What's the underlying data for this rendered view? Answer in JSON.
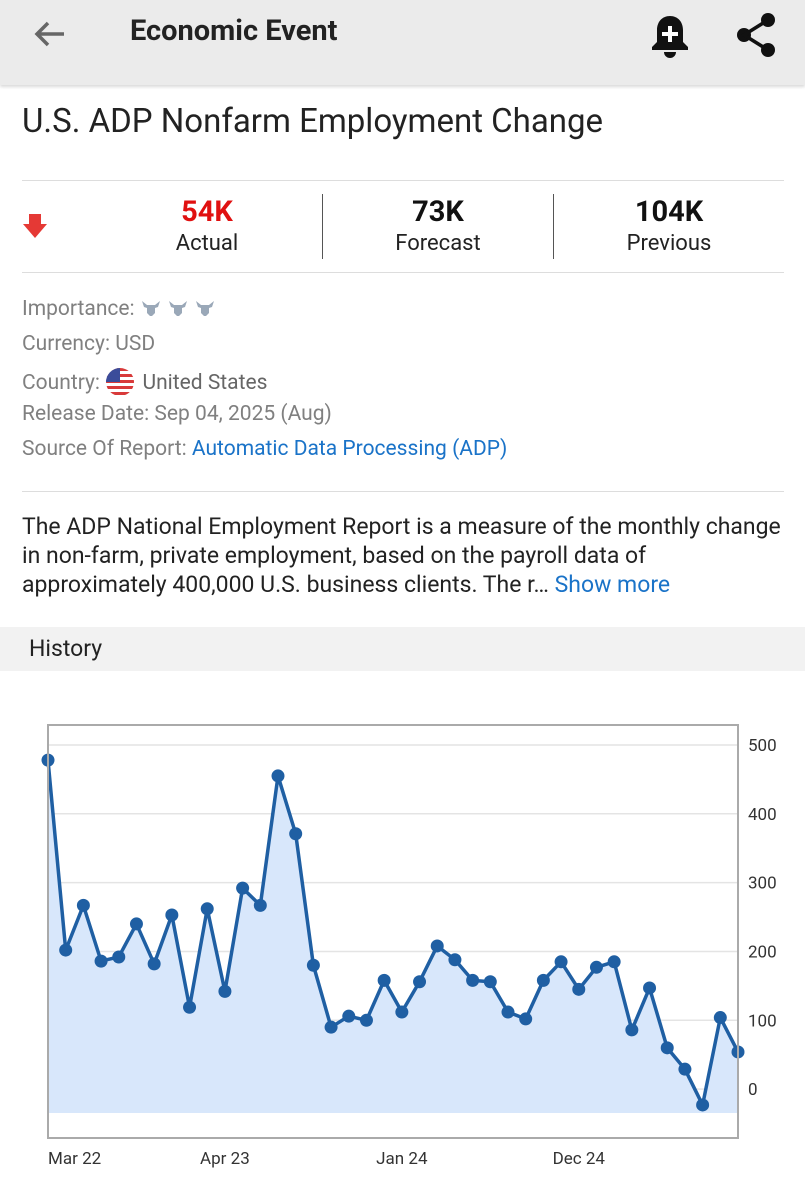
{
  "header": {
    "title": "Economic Event"
  },
  "event": {
    "title": "U.S. ADP Nonfarm Employment Change",
    "stats": [
      {
        "value": "54K",
        "label": "Actual"
      },
      {
        "value": "73K",
        "label": "Forecast"
      },
      {
        "value": "104K",
        "label": "Previous"
      }
    ],
    "importance_label": "Importance:",
    "currency": "Currency: USD",
    "country_label": "Country:",
    "country": "United States",
    "release_date": "Release Date: Sep 04, 2025 (Aug)",
    "source_label": "Source Of Report:",
    "source": "Automatic Data Processing (ADP)",
    "description": "The ADP National Employment Report is a measure of the monthly change in non-farm, private employment, based on the payroll data of approximately 400,000 U.S. business clients. The r…",
    "show_more": "Show more",
    "history_label": "History"
  },
  "chart_data": {
    "type": "line",
    "color": "#1f5fa3",
    "area_color": "#d8e7fb",
    "categories": [
      "Mar 22",
      null,
      null,
      null,
      null,
      null,
      null,
      null,
      null,
      null,
      "Apr 23",
      null,
      null,
      null,
      null,
      null,
      null,
      null,
      null,
      null,
      "Jan 24",
      null,
      null,
      null,
      null,
      null,
      null,
      null,
      null,
      null,
      "Dec 24",
      null,
      null,
      null,
      null,
      null,
      null,
      null,
      null,
      null
    ],
    "values": [
      478,
      202,
      267,
      186,
      192,
      240,
      182,
      253,
      119,
      262,
      142,
      292,
      267,
      455,
      371,
      180,
      90,
      106,
      100,
      158,
      112,
      156,
      208,
      188,
      158,
      156,
      112,
      102,
      158,
      185,
      145,
      177,
      185,
      86,
      147,
      60,
      29,
      -23,
      104,
      54
    ],
    "ylim": [
      -71,
      529
    ],
    "yticks": [
      0,
      100,
      200,
      300,
      400,
      500
    ],
    "grid": true
  }
}
